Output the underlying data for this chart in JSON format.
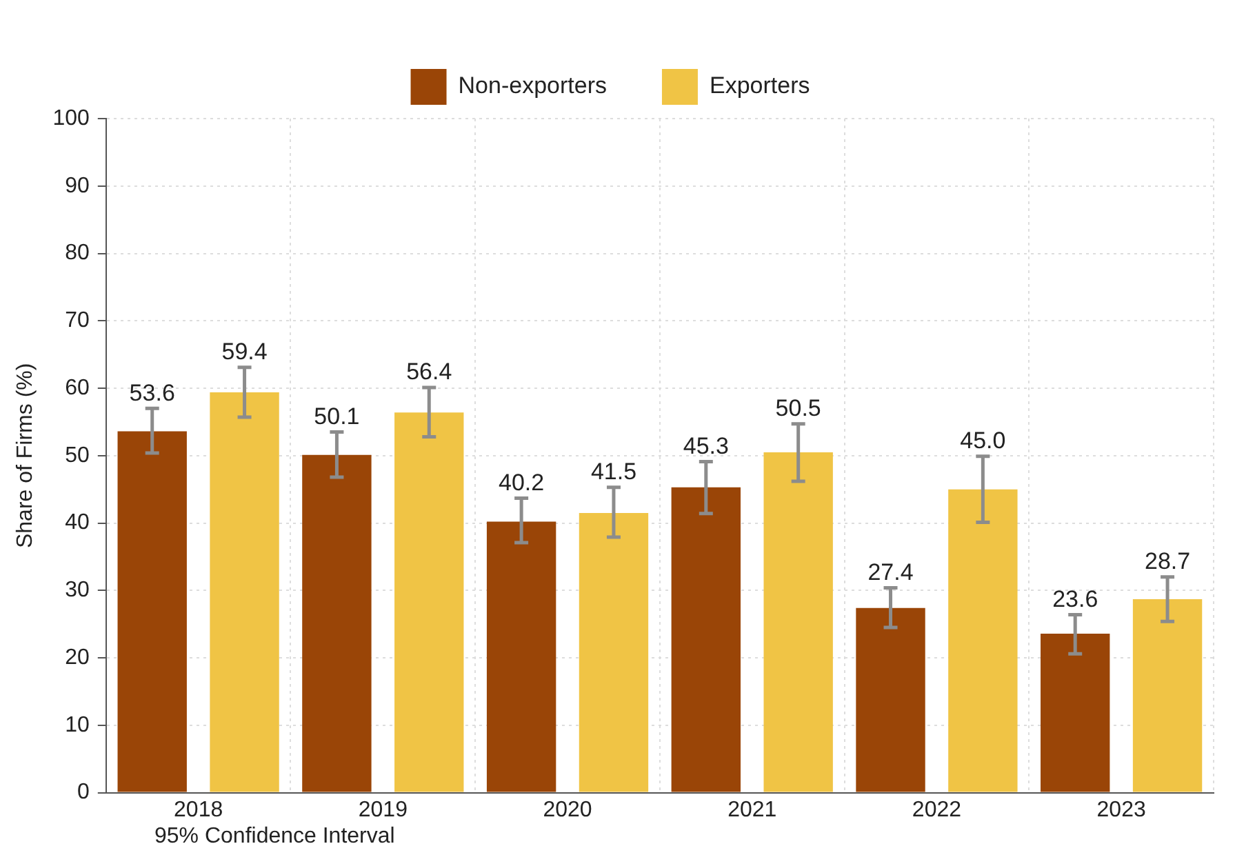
{
  "chart_data": {
    "type": "bar",
    "ylabel": "Share of Firms (%)",
    "categories": [
      "2018",
      "2019",
      "2020",
      "2021",
      "2022",
      "2023"
    ],
    "series": [
      {
        "name": "Non-exporters",
        "color": "#9a4507",
        "values": [
          53.6,
          50.1,
          40.2,
          45.3,
          27.4,
          23.6
        ],
        "value_labels": [
          "53.6",
          "50.1",
          "40.2",
          "45.3",
          "27.4",
          "23.6"
        ],
        "errors": [
          [
            50.4,
            57.0
          ],
          [
            46.8,
            53.5
          ],
          [
            37.1,
            43.7
          ],
          [
            41.4,
            49.1
          ],
          [
            24.5,
            30.4
          ],
          [
            20.6,
            26.4
          ]
        ]
      },
      {
        "name": "Exporters",
        "color": "#f0c445",
        "values": [
          59.4,
          56.4,
          41.5,
          50.5,
          45.0,
          28.7
        ],
        "value_labels": [
          "59.4",
          "56.4",
          "41.5",
          "50.5",
          "45.0",
          "28.7"
        ],
        "errors": [
          [
            55.7,
            63.1
          ],
          [
            52.8,
            60.1
          ],
          [
            37.9,
            45.3
          ],
          [
            46.2,
            54.7
          ],
          [
            40.1,
            49.9
          ],
          [
            25.4,
            32.0
          ]
        ]
      }
    ],
    "ylim": [
      0,
      100
    ],
    "yticks": [
      0,
      10,
      20,
      30,
      40,
      50,
      60,
      70,
      80,
      90,
      100
    ],
    "grid": true,
    "legend": "top",
    "annotations": [
      "95% Confidence Interval"
    ]
  }
}
